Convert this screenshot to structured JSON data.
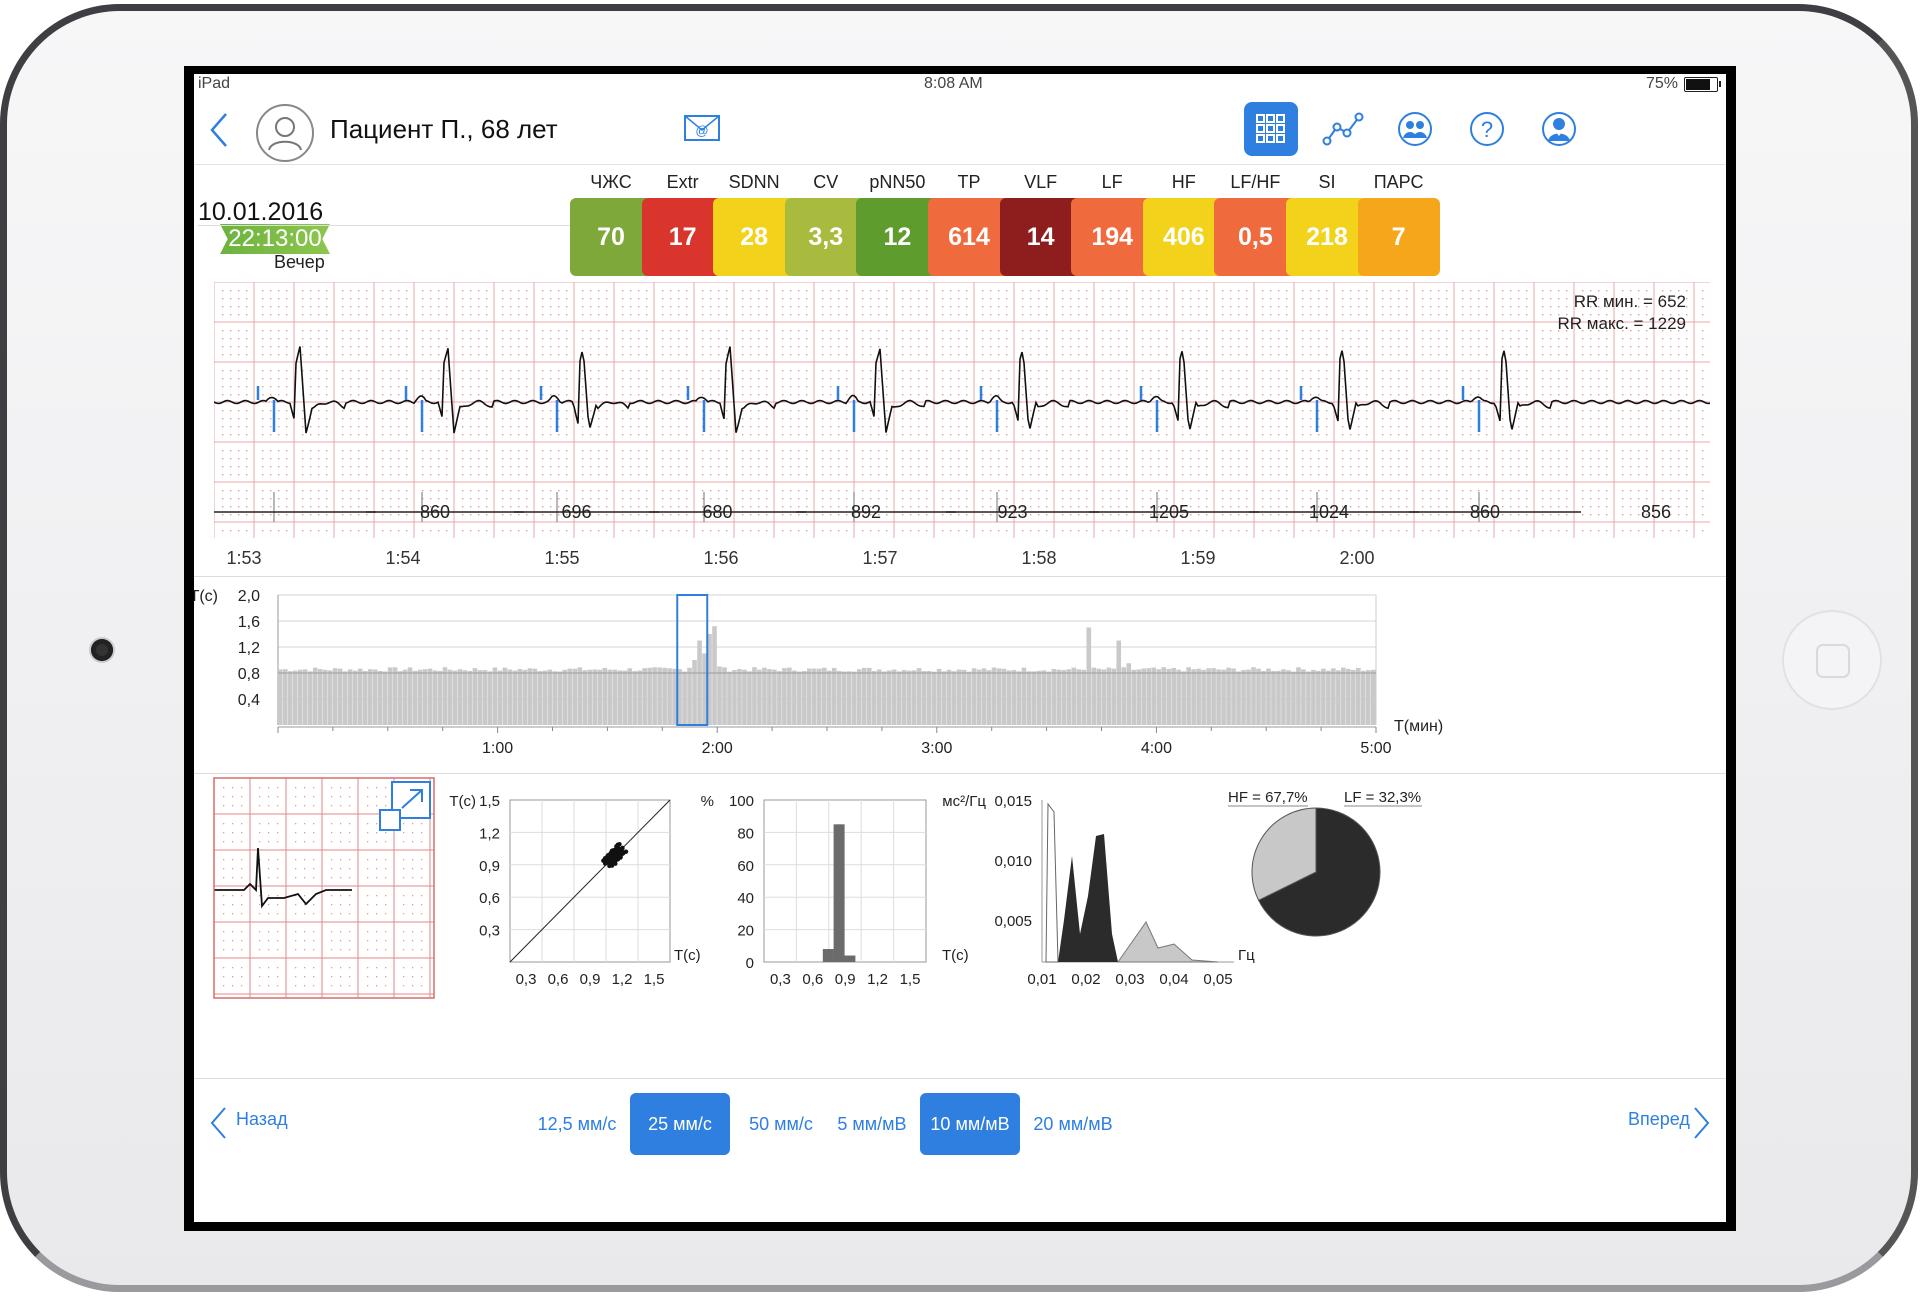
{
  "status_bar": {
    "device": "iPad",
    "time": "8:08 AM",
    "battery": "75%"
  },
  "header": {
    "patient": "Пациент П., 68 лет",
    "icons": [
      "back-chevron-icon",
      "user-avatar-icon",
      "email-icon",
      "grid-icon",
      "trend-chart-icon",
      "group-icon",
      "help-icon",
      "profile-icon"
    ]
  },
  "session": {
    "date": "10.01.2016",
    "time": "22:13:00",
    "period": "Вечер"
  },
  "metrics": [
    {
      "label": "ЧЖС",
      "value": "70",
      "color": "#7fa83a"
    },
    {
      "label": "Extr",
      "value": "17",
      "color": "#d9352c"
    },
    {
      "label": "SDNN",
      "value": "28",
      "color": "#f3d21c"
    },
    {
      "label": "CV",
      "value": "3,3",
      "color": "#a9bb3e"
    },
    {
      "label": "pNN50",
      "value": "12",
      "color": "#5d9c2d"
    },
    {
      "label": "TP",
      "value": "614",
      "color": "#ef6b3e"
    },
    {
      "label": "VLF",
      "value": "14",
      "color": "#8e1d1d"
    },
    {
      "label": "LF",
      "value": "194",
      "color": "#ef6b3e"
    },
    {
      "label": "HF",
      "value": "406",
      "color": "#f3d21c"
    },
    {
      "label": "LF/HF",
      "value": "0,5",
      "color": "#ef6b3e"
    },
    {
      "label": "SI",
      "value": "218",
      "color": "#f3d21c"
    },
    {
      "label": "ПАРС",
      "value": "7",
      "color": "#f6a61a"
    }
  ],
  "ecg": {
    "rr_min": "RR мин. = 652",
    "rr_max": "RR макс. = 1229",
    "rr_values": [
      "860",
      "696",
      "680",
      "892",
      "923",
      "1205",
      "1024",
      "860",
      "856"
    ],
    "time_ticks": [
      "1:53",
      "1:54",
      "1:55",
      "1:56",
      "1:57",
      "1:58",
      "1:59",
      "2:00"
    ]
  },
  "chart_data": [
    {
      "type": "bar",
      "title": "",
      "ylabel": "T(c)",
      "xlabel": "T(мин)",
      "y_ticks": [
        "2,0",
        "1,6",
        "1,2",
        "0,8",
        "0,4"
      ],
      "x_ticks": [
        "1:00",
        "2:00",
        "3:00",
        "4:00",
        "5:00"
      ],
      "ylim": [
        0,
        2.0
      ],
      "xlim": [
        0,
        5
      ],
      "note_highlight_range_min": [
        1.9,
        2.0
      ]
    },
    {
      "type": "scatter",
      "ylabel": "T(c)",
      "xlabel": "T(c)",
      "y_ticks": [
        "1,5",
        "1,2",
        "0,9",
        "0,6",
        "0,3"
      ],
      "x_ticks": [
        "0,3",
        "0,6",
        "0,9",
        "1,2",
        "1,5"
      ],
      "xlim": [
        0,
        1.5
      ],
      "ylim": [
        0,
        1.5
      ]
    },
    {
      "type": "bar",
      "ylabel": "%",
      "xlabel": "T(c)",
      "y_ticks": [
        "100",
        "80",
        "60",
        "40",
        "20",
        "0"
      ],
      "x_ticks": [
        "0,3",
        "0,6",
        "0,9",
        "1,2",
        "1,5"
      ],
      "categories": [
        "0,6",
        "0,7",
        "0,8"
      ],
      "values": [
        8,
        85,
        4
      ],
      "ylim": [
        0,
        100
      ]
    },
    {
      "type": "area",
      "ylabel": "мс²/Гц",
      "xlabel": "Гц",
      "y_ticks": [
        "0,015",
        "0,010",
        "0,005"
      ],
      "x_ticks": [
        "0,01",
        "0,02",
        "0,03",
        "0,04",
        "0,05"
      ],
      "ylim": [
        0,
        0.015
      ]
    },
    {
      "type": "pie",
      "labels": [
        "HF = 67,7%",
        "LF = 32,3%"
      ],
      "values": [
        67.7,
        32.3
      ],
      "colors": [
        "#2b2b2b",
        "#c8c8c8"
      ]
    }
  ],
  "footer": {
    "back": "Назад",
    "forward": "Вперед",
    "speeds": [
      "12,5 мм/с",
      "25 мм/с",
      "50 мм/с"
    ],
    "amps": [
      "5 мм/мВ",
      "10 мм/мВ",
      "20 мм/мВ"
    ],
    "active_speed": "25 мм/с",
    "active_amp": "10 мм/мВ"
  }
}
